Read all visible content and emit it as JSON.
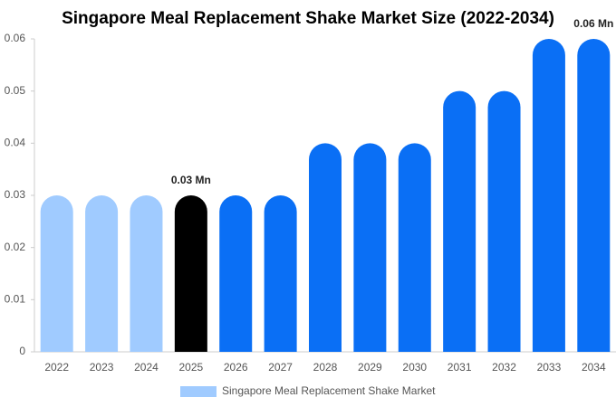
{
  "chart_data": {
    "type": "bar",
    "title": "Singapore Meal Replacement Shake Market Size (2022-2034)",
    "categories": [
      "2022",
      "2023",
      "2024",
      "2025",
      "2026",
      "2027",
      "2028",
      "2029",
      "2030",
      "2031",
      "2032",
      "2033",
      "2034"
    ],
    "series": [
      {
        "name": "Singapore Meal Replacement Shake Market",
        "color": "#a0cbff",
        "colors": [
          "#a0cbff",
          "#a0cbff",
          "#a0cbff",
          "#000000",
          "#0a6ff5",
          "#0a6ff5",
          "#0a6ff5",
          "#0a6ff5",
          "#0a6ff5",
          "#0a6ff5",
          "#0a6ff5",
          "#0a6ff5",
          "#0a6ff5"
        ],
        "values": [
          0.03,
          0.03,
          0.03,
          0.03,
          0.03,
          0.03,
          0.04,
          0.04,
          0.04,
          0.05,
          0.05,
          0.06,
          0.06
        ],
        "value_labels": [
          null,
          null,
          null,
          "0.03 Mn",
          null,
          null,
          null,
          null,
          null,
          null,
          null,
          null,
          "0.06 Mn"
        ]
      }
    ],
    "ylim": [
      0,
      0.06
    ],
    "yticks": [
      0,
      0.01,
      0.02,
      0.03,
      0.04,
      0.05,
      0.06
    ],
    "grid": false
  }
}
